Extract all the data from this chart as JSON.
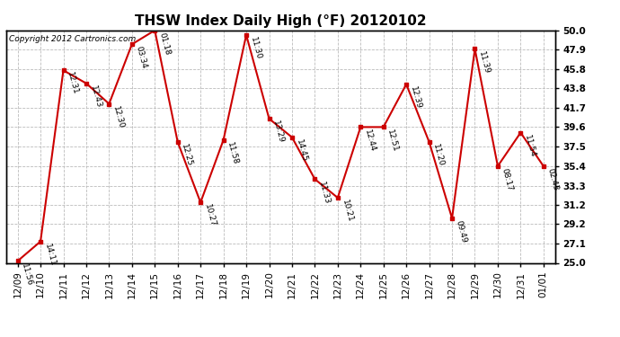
{
  "title": "THSW Index Daily High (°F) 20120102",
  "copyright": "Copyright 2012 Cartronics.com",
  "dates": [
    "12/09",
    "12/10",
    "12/11",
    "12/12",
    "12/13",
    "12/14",
    "12/15",
    "12/16",
    "12/17",
    "12/18",
    "12/19",
    "12/20",
    "12/21",
    "12/22",
    "12/23",
    "12/24",
    "12/25",
    "12/26",
    "12/27",
    "12/28",
    "12/29",
    "12/30",
    "12/31",
    "01/01"
  ],
  "values": [
    25.2,
    27.3,
    45.7,
    44.3,
    42.1,
    48.5,
    50.0,
    38.0,
    31.5,
    38.2,
    49.5,
    40.5,
    38.5,
    34.0,
    32.0,
    39.6,
    39.6,
    44.2,
    38.0,
    29.8,
    48.0,
    35.4,
    39.0,
    35.4
  ],
  "time_labels": [
    "11:56",
    "14:11",
    "12:31",
    "12:43",
    "12:30",
    "03:34",
    "01:18",
    "12:25",
    "10:27",
    "11:58",
    "11:30",
    "13:29",
    "14:45",
    "11:33",
    "10:21",
    "12:44",
    "12:51",
    "12:39",
    "11:20",
    "09:49",
    "11:39",
    "08:17",
    "11:54",
    "02:43"
  ],
  "line_color": "#cc0000",
  "marker_color": "#cc0000",
  "marker_size": 3.5,
  "grid_color": "#bbbbbb",
  "bg_color": "#ffffff",
  "ylim": [
    25.0,
    50.0
  ],
  "yticks": [
    25.0,
    27.1,
    29.2,
    31.2,
    33.3,
    35.4,
    37.5,
    39.6,
    41.7,
    43.8,
    45.8,
    47.9,
    50.0
  ],
  "ytick_labels": [
    "25.0",
    "27.1",
    "29.2",
    "31.2",
    "33.3",
    "35.4",
    "37.5",
    "39.6",
    "41.7",
    "43.8",
    "45.8",
    "47.9",
    "50.0"
  ],
  "title_fontsize": 11,
  "tick_fontsize": 7.5,
  "annot_fontsize": 6.5
}
